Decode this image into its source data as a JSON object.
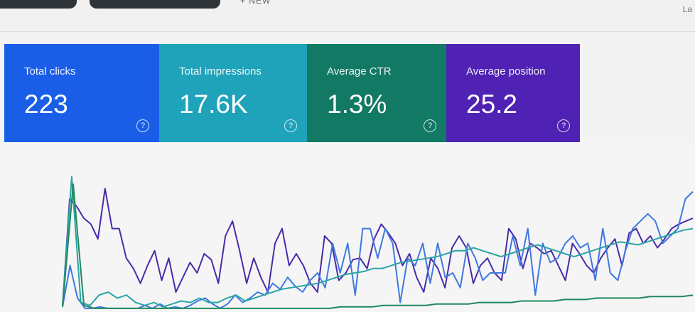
{
  "topbar": {
    "new_label": "+ NEW",
    "right_text": "La"
  },
  "metrics": [
    {
      "label": "Total clicks",
      "value": "223",
      "color": "#1a5ee8"
    },
    {
      "label": "Total impressions",
      "value": "17.6K",
      "color": "#1ea3ba"
    },
    {
      "label": "Average CTR",
      "value": "1.3%",
      "color": "#117964"
    },
    {
      "label": "Average position",
      "value": "25.2",
      "color": "#4f22b3"
    }
  ],
  "help_icon_glyph": "?",
  "chart_data": {
    "type": "line",
    "title": "",
    "xlabel": "",
    "ylabel": "",
    "ylim": [
      0,
      100
    ],
    "grid": false,
    "series": [
      {
        "color": "#4a2aa8",
        "values": [
          2,
          75,
          70,
          62,
          58,
          48,
          82,
          55,
          55,
          35,
          28,
          18,
          30,
          40,
          20,
          35,
          12,
          22,
          32,
          25,
          38,
          34,
          18,
          50,
          60,
          40,
          18,
          35,
          22,
          12,
          45,
          55,
          30,
          38,
          30,
          18,
          12,
          50,
          45,
          20,
          25,
          34,
          35,
          28,
          48,
          58,
          52,
          45,
          30,
          38,
          22,
          12,
          35,
          28,
          15,
          42,
          50,
          42,
          18,
          30,
          35,
          25,
          20,
          55,
          48,
          28,
          45,
          42,
          38,
          40,
          30,
          20,
          45,
          38,
          30,
          25,
          35,
          42,
          48,
          30,
          52,
          55,
          45,
          50,
          42,
          48,
          55,
          58,
          60,
          62
        ]
      },
      {
        "color": "#3f78e0",
        "values": [
          2,
          30,
          8,
          1,
          1,
          2,
          1,
          1,
          1,
          1,
          1,
          3,
          1,
          4,
          1,
          2,
          1,
          3,
          6,
          8,
          4,
          1,
          4,
          10,
          5,
          8,
          12,
          10,
          18,
          14,
          22,
          16,
          12,
          20,
          25,
          15,
          45,
          25,
          45,
          10,
          55,
          55,
          35,
          55,
          45,
          5,
          35,
          30,
          45,
          18,
          45,
          22,
          25,
          15,
          45,
          35,
          20,
          25,
          25,
          25,
          50,
          30,
          55,
          10,
          45,
          32,
          35,
          45,
          50,
          42,
          45,
          20,
          55,
          25,
          20,
          40,
          55,
          60,
          65,
          60,
          45,
          50,
          55,
          75,
          80
        ]
      },
      {
        "color": "#2aa5a5",
        "values": [
          2,
          90,
          5,
          3,
          10,
          12,
          8,
          10,
          5,
          3,
          5,
          2,
          4,
          6,
          5,
          8,
          5,
          5,
          8,
          10,
          6,
          8,
          10,
          12,
          14,
          15,
          16,
          17,
          18,
          20,
          22,
          24,
          25,
          26,
          28,
          28,
          30,
          32,
          33,
          34,
          35,
          36,
          38,
          40,
          40,
          42,
          40,
          38,
          36,
          38,
          40,
          42,
          44,
          42,
          40,
          38,
          36,
          38,
          40,
          42,
          44,
          46,
          45,
          44,
          46,
          48,
          50,
          52,
          54,
          55
        ]
      },
      {
        "color": "#1e8a5c",
        "values": [
          2,
          85,
          3,
          1,
          1,
          1,
          1,
          1,
          1,
          1,
          1,
          1,
          1,
          1,
          1,
          1,
          1,
          1,
          1,
          1,
          1,
          1,
          1,
          1,
          1,
          1,
          2,
          2,
          2,
          2,
          3,
          3,
          3,
          3,
          3,
          4,
          4,
          4,
          4,
          5,
          5,
          5,
          5,
          6,
          6,
          6,
          6,
          7,
          7,
          7,
          8,
          8,
          8,
          8,
          8,
          9,
          9,
          9,
          9,
          10
        ]
      }
    ]
  }
}
